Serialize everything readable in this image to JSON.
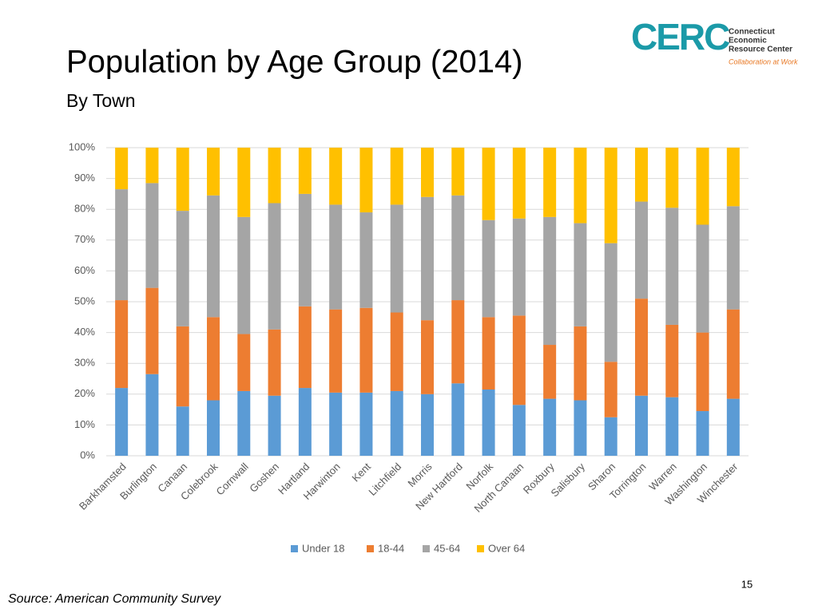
{
  "slide": {
    "logo_mark": "CERC",
    "logo_lines": [
      "Connecticut",
      "Economic",
      "Resource Center"
    ],
    "logo_tagline": "Collaboration at Work",
    "source": "Source: American Community Survey",
    "page_number": "15"
  },
  "chart_data": {
    "type": "stacked_bar",
    "title": "Population by Age Group (2014)",
    "subtitle": "By Town",
    "categories": [
      "Barkhamsted",
      "Burlington",
      "Canaan",
      "Colebrook",
      "Cornwall",
      "Goshen",
      "Hartland",
      "Harwinton",
      "Kent",
      "Litchfield",
      "Morris",
      "New Hartford",
      "Norfolk",
      "North Canaan",
      "Roxbury",
      "Salisbury",
      "Sharon",
      "Torrington",
      "Warren",
      "Washington",
      "Winchester"
    ],
    "series": [
      {
        "name": "Under 18",
        "color": "#5b9bd5",
        "values": [
          22,
          26.5,
          16,
          18,
          21,
          19.5,
          22,
          20.5,
          20.5,
          21,
          20,
          23.5,
          21.5,
          16.5,
          18.5,
          18,
          12.5,
          19.5,
          19,
          14.5,
          18.5
        ]
      },
      {
        "name": "18-44",
        "color": "#ed7d31",
        "values": [
          28.5,
          28,
          26,
          27,
          18.5,
          21.5,
          26.5,
          27,
          27.5,
          25.5,
          24,
          27,
          23.5,
          29,
          17.5,
          24,
          18,
          31.5,
          23.5,
          25.5,
          29
        ]
      },
      {
        "name": "45-64",
        "color": "#a5a5a5",
        "values": [
          36,
          34,
          37.5,
          39.5,
          38,
          41,
          36.5,
          34,
          31,
          35,
          40,
          34,
          31.5,
          31.5,
          41.5,
          33.5,
          38.5,
          31.5,
          38,
          35,
          33.5
        ]
      },
      {
        "name": "Over 64",
        "color": "#ffc000",
        "values": [
          13.5,
          11.5,
          20.5,
          15.5,
          22.5,
          18,
          15,
          18.5,
          21,
          18.5,
          16,
          15.5,
          23.5,
          23,
          22.5,
          24.5,
          31,
          17.5,
          19.5,
          25,
          19
        ]
      }
    ],
    "ylim": [
      0,
      100
    ],
    "yticks": [
      {
        "value": 0,
        "label": "0%"
      },
      {
        "value": 10,
        "label": "10%"
      },
      {
        "value": 20,
        "label": "20%"
      },
      {
        "value": 30,
        "label": "30%"
      },
      {
        "value": 40,
        "label": "40%"
      },
      {
        "value": 50,
        "label": "50%"
      },
      {
        "value": 60,
        "label": "60%"
      },
      {
        "value": 70,
        "label": "70%"
      },
      {
        "value": 80,
        "label": "80%"
      },
      {
        "value": 90,
        "label": "90%"
      },
      {
        "value": 100,
        "label": "100%"
      }
    ],
    "grid": true,
    "legend": "bottom"
  }
}
